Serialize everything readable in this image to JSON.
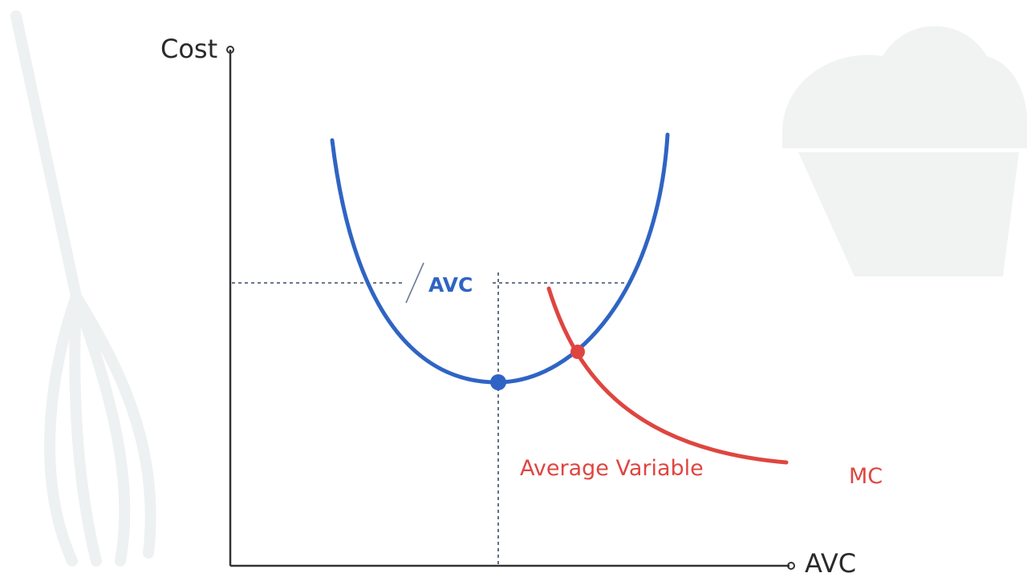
{
  "diagram": {
    "y_axis_label": "Cost",
    "x_axis_label": "AVC",
    "level_label": "AVC",
    "curve_caption": "Average Variable",
    "mc_label": "MC"
  },
  "colors": {
    "avc_curve": "#2f64c4",
    "mc_curve": "#df4540",
    "axis": "#333333",
    "guide": "#3a4a66",
    "decoration": "#eef1f1"
  },
  "icons": [
    "whisk-icon",
    "cupcake-icon"
  ]
}
